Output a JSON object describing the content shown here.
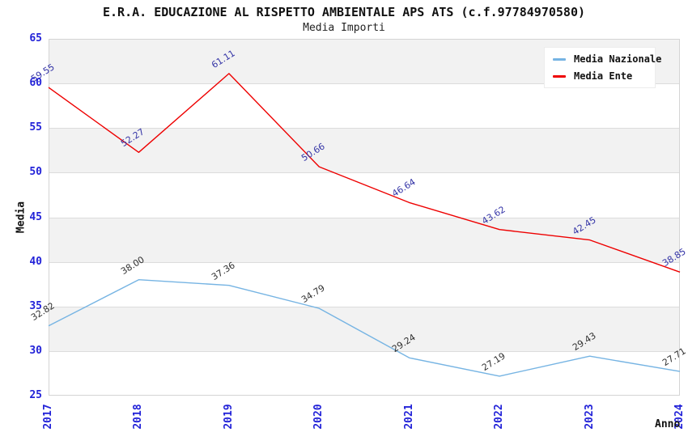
{
  "header": {
    "title": "E.R.A. EDUCAZIONE AL RISPETTO AMBIENTALE APS ATS (c.f.97784970580)",
    "subtitle": "Media Importi"
  },
  "chart_data": {
    "type": "line",
    "title": "E.R.A. EDUCAZIONE AL RISPETTO AMBIENTALE APS ATS (c.f.97784970580)",
    "subtitle": "Media Importi",
    "xlabel": "Anno",
    "ylabel": "Media",
    "categories": [
      "2017",
      "2018",
      "2019",
      "2020",
      "2021",
      "2022",
      "2023",
      "2024"
    ],
    "series": [
      {
        "name": "Media Nazionale",
        "color": "#76b4e3",
        "label_color": "#303030",
        "values": [
          32.82,
          38.0,
          37.36,
          34.79,
          29.24,
          27.19,
          29.43,
          27.71
        ]
      },
      {
        "name": "Media Ente",
        "color": "#ee0000",
        "label_color": "#3333a6",
        "values": [
          59.55,
          52.27,
          61.11,
          50.66,
          46.64,
          43.62,
          42.45,
          38.85
        ]
      }
    ],
    "ylim": [
      25,
      65
    ],
    "yticks": [
      65,
      60,
      55,
      50,
      45,
      40,
      35,
      30,
      25
    ],
    "grid": true,
    "legend_position": "top-right",
    "band_colors": [
      "#f2f2f2",
      "#ffffff"
    ],
    "axis_text_color": "#2222d8"
  }
}
